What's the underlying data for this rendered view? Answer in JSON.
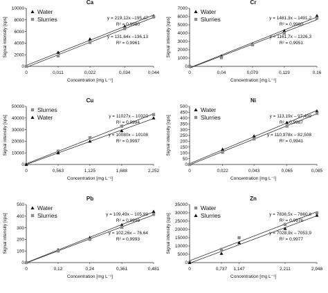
{
  "chart_data": [
    {
      "type": "scatter",
      "title": "Ca",
      "xlabel": "Concentration [mg L⁻¹]",
      "ylabel": "Signal intensity [cps]",
      "xticks": [
        "0",
        "0,011",
        "0,022",
        "0,034",
        "0,044"
      ],
      "x": [
        0,
        0.011,
        0.022,
        0.034,
        0.044
      ],
      "xlim": [
        0,
        0.044
      ],
      "ylim": [
        0,
        10000
      ],
      "yticks": [
        "0",
        "2000",
        "4000",
        "6000",
        "8000",
        "10000"
      ],
      "legend_position": "top-left",
      "series": [
        {
          "name": "Water",
          "marker": "triangle",
          "values": [
            0,
            2400,
            4700,
            6900,
            8700
          ],
          "equation": "y = 219,12x –195,47",
          "r2": "R² = 0,9980"
        },
        {
          "name": "Slurries",
          "marker": "square",
          "values": [
            0,
            1800,
            4100,
            6500,
            8500
          ],
          "equation": "y = 131,64x –136,13",
          "r2": "R² = 0,9961"
        }
      ]
    },
    {
      "type": "scatter",
      "title": "Cr",
      "xlabel": "Concentration [mg L⁻¹]",
      "ylabel": "Signal intensity [cps]",
      "xticks": [
        "0",
        "0,04",
        "0,079",
        "0,119",
        "0,16"
      ],
      "x": [
        0,
        0.04,
        0.079,
        0.119,
        0.16
      ],
      "xlim": [
        0,
        0.16
      ],
      "ylim": [
        0,
        7000
      ],
      "yticks": [
        "0",
        "1000",
        "2000",
        "3000",
        "4000",
        "5000",
        "6000",
        "7000"
      ],
      "legend_position": "top-left",
      "series": [
        {
          "name": "Water",
          "marker": "triangle",
          "values": [
            0,
            1250,
            2700,
            4300,
            6100
          ],
          "equation": "y = 1481,3x – 1491,2",
          "r2": "R² = 0,9980"
        },
        {
          "name": "Slurries",
          "marker": "square",
          "values": [
            0,
            1050,
            2600,
            4000,
            5800
          ],
          "equation": "y = 1161,7x – 1326,3",
          "r2": "R² = 0,9951"
        }
      ]
    },
    {
      "type": "scatter",
      "title": "Cu",
      "xlabel": "Concentration [mg L⁻¹]",
      "ylabel": "Signal intensity [cps]",
      "xticks": [
        "0",
        "0,563",
        "1,125",
        "1,688",
        "2,252"
      ],
      "x": [
        0,
        0.563,
        1.125,
        1.688,
        2.252
      ],
      "xlim": [
        0,
        2.252
      ],
      "ylim": [
        0,
        50000
      ],
      "yticks": [
        "0",
        "10000",
        "20000",
        "30000",
        "40000",
        "50000"
      ],
      "legend_position": "top-left",
      "series": [
        {
          "name": "Slurries",
          "marker": "square",
          "values": [
            0,
            11500,
            23000,
            33000,
            43000
          ],
          "equation": "y = 11027x – 10320",
          "r2": "R² = 0,9994"
        },
        {
          "name": "Water",
          "marker": "triangle",
          "values": [
            0,
            10000,
            20000,
            29000,
            40000
          ],
          "equation": "y = 10080x – 10108",
          "r2": "R² = 0,9997"
        }
      ]
    },
    {
      "type": "scatter",
      "title": "Ni",
      "xlabel": "Concentration [mg L⁻¹]",
      "ylabel": "Signal intensity [cps]",
      "xticks": [
        "0",
        "0,022",
        "0,043",
        "0,065",
        "0,085"
      ],
      "x": [
        0,
        0.022,
        0.043,
        0.065,
        0.085
      ],
      "xlim": [
        0,
        0.085
      ],
      "ylim": [
        0,
        500
      ],
      "yticks": [
        "0",
        "50",
        "100",
        "150",
        "200",
        "250",
        "300",
        "350",
        "400",
        "450",
        "500"
      ],
      "legend_position": "top-left",
      "series": [
        {
          "name": "Water",
          "marker": "triangle",
          "values": [
            0,
            130,
            245,
            360,
            460
          ],
          "equation": "y = 113,19x – 97,409",
          "r2": "R² = 0,9987"
        },
        {
          "name": "Slurries",
          "marker": "square",
          "values": [
            0,
            105,
            220,
            330,
            440
          ],
          "equation": "y = 110,978x – 82,508",
          "r2": "R² = 0,9941"
        }
      ]
    },
    {
      "type": "scatter",
      "title": "Pb",
      "xlabel": "Concentration [mg L⁻¹]",
      "ylabel": "Signal intensity [cps]",
      "xticks": [
        "0",
        "0,12",
        "0,24",
        "0,361",
        "0,481"
      ],
      "x": [
        0,
        0.12,
        0.24,
        0.361,
        0.481
      ],
      "xlim": [
        0,
        0.481
      ],
      "ylim": [
        0,
        500
      ],
      "yticks": [
        "0",
        "100",
        "200",
        "300",
        "400",
        "500"
      ],
      "legend_position": "top-left",
      "series": [
        {
          "name": "Water",
          "marker": "triangle",
          "values": [
            0,
            110,
            215,
            325,
            440
          ],
          "equation": "y = 109,49x – 105,99",
          "r2": "R² = 0,9998"
        },
        {
          "name": "Slurries",
          "marker": "square",
          "values": [
            0,
            100,
            200,
            305,
            415
          ],
          "equation": "y = 102,26x – 76,64",
          "r2": "R² = 0,9993"
        }
      ]
    },
    {
      "type": "scatter",
      "title": "Zn",
      "xlabel": "Concentration [mg L⁻¹]",
      "ylabel": "Signal intensity [cps]",
      "xticks": [
        "0",
        "0,737",
        "1,147",
        "2,211",
        "2,948"
      ],
      "x": [
        0,
        0.737,
        1.147,
        2.211,
        2.948
      ],
      "xlim": [
        0,
        2.948
      ],
      "ylim": [
        0,
        35000
      ],
      "yticks": [
        "0",
        "5000",
        "10000",
        "15000",
        "20000",
        "25000",
        "30000",
        "35000"
      ],
      "legend_position": "top-left",
      "series": [
        {
          "name": "Water",
          "marker": "square",
          "values": [
            0,
            8000,
            15000,
            23000,
            30000
          ],
          "equation": "y = 7836,5x – 7860,8",
          "r2": "R² = 0,9976"
        },
        {
          "name": "Slurries",
          "marker": "triangle",
          "values": [
            0,
            5500,
            12000,
            20500,
            28500
          ],
          "equation": "y = 7028,9x – 7053,9",
          "r2": "R² = 0,9977"
        }
      ]
    }
  ]
}
